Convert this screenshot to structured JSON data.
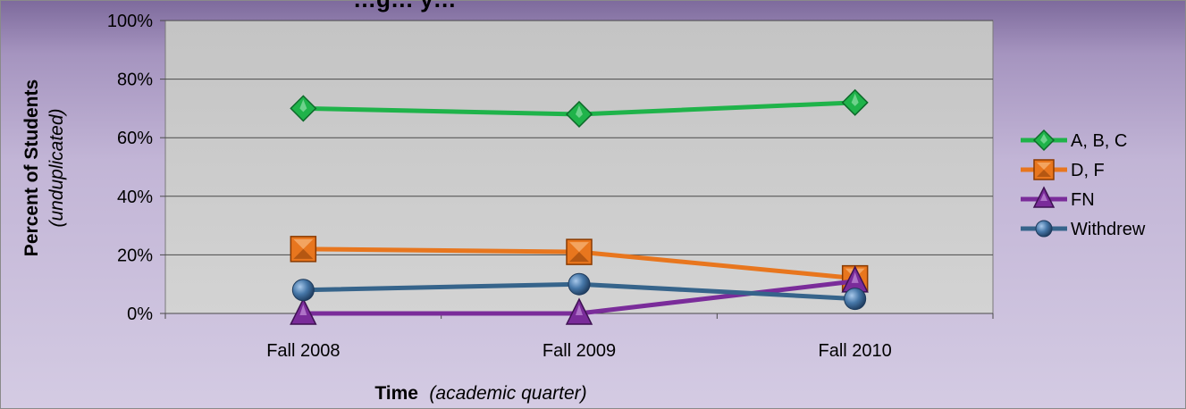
{
  "chart_data": {
    "type": "line",
    "title": "…g… y…",
    "categories": [
      "Fall 2008",
      "Fall 2009",
      "Fall 2010"
    ],
    "ylim": [
      0,
      100
    ],
    "yticks": [
      "0%",
      "20%",
      "40%",
      "60%",
      "80%",
      "100%"
    ],
    "ylabel": {
      "main": "Percent of Students",
      "sub": "(unduplicated)"
    },
    "xlabel": {
      "main": "Time",
      "sub": "(academic quarter)"
    },
    "grid": true,
    "legend": "right",
    "series": [
      {
        "name": "A, B, C",
        "values": [
          70,
          68,
          72
        ],
        "color": "#1fb34a",
        "marker": "diamond"
      },
      {
        "name": "D, F",
        "values": [
          22,
          21,
          12
        ],
        "color": "#e8761e",
        "marker": "square"
      },
      {
        "name": "FN",
        "values": [
          0,
          0,
          11
        ],
        "color": "#7a2c9a",
        "marker": "triangle"
      },
      {
        "name": "Withdrew",
        "values": [
          8,
          10,
          5
        ],
        "color": "#36648b",
        "marker": "circle"
      }
    ]
  }
}
